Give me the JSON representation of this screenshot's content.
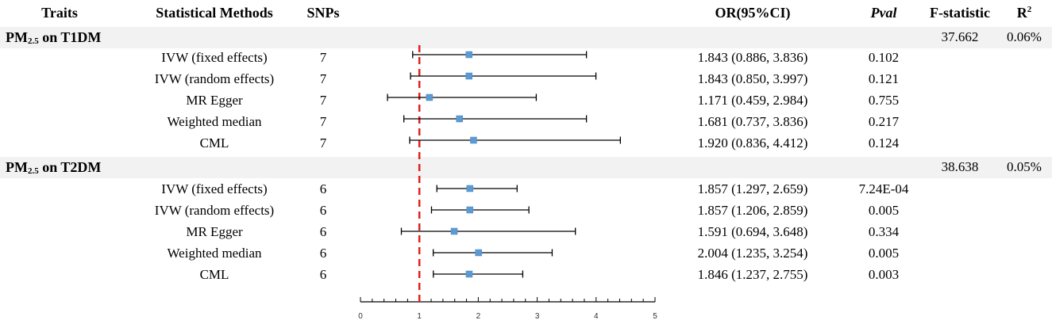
{
  "headers": {
    "traits": "Traits",
    "methods": "Statistical Methods",
    "snps": "SNPs",
    "or_ci": "OR(95%CI)",
    "pval": "Pval",
    "fstat": "F-statistic",
    "r2_base": "R",
    "r2_sup": "2"
  },
  "groups": [
    {
      "label_pre": "PM",
      "label_sub": "2.5",
      "label_post": " on T1DM",
      "fstat": "37.662",
      "r2": "0.06%",
      "rows": [
        {
          "method": "IVW (fixed effects)",
          "snps": "7",
          "or_text": "1.843 (0.886, 3.836)",
          "pval": "0.102"
        },
        {
          "method": "IVW (random effects)",
          "snps": "7",
          "or_text": "1.843 (0.850, 3.997)",
          "pval": "0.121"
        },
        {
          "method": "MR Egger",
          "snps": "7",
          "or_text": "1.171 (0.459, 2.984)",
          "pval": "0.755"
        },
        {
          "method": "Weighted median",
          "snps": "7",
          "or_text": "1.681 (0.737, 3.836)",
          "pval": "0.217"
        },
        {
          "method": "CML",
          "snps": "7",
          "or_text": "1.920 (0.836, 4.412)",
          "pval": "0.124"
        }
      ]
    },
    {
      "label_pre": "PM",
      "label_sub": "2.5",
      "label_post": " on T2DM",
      "fstat": "38.638",
      "r2": "0.05%",
      "rows": [
        {
          "method": "IVW (fixed effects)",
          "snps": "6",
          "or_text": "1.857 (1.297, 2.659)",
          "pval": "7.24E-04"
        },
        {
          "method": "IVW (random effects)",
          "snps": "6",
          "or_text": "1.857 (1.206, 2.859)",
          "pval": "0.005"
        },
        {
          "method": "MR Egger",
          "snps": "6",
          "or_text": "1.591 (0.694, 3.648)",
          "pval": "0.334"
        },
        {
          "method": "Weighted median",
          "snps": "6",
          "or_text": "2.004 (1.235, 3.254)",
          "pval": "0.005"
        },
        {
          "method": "CML",
          "snps": "6",
          "or_text": "1.846 (1.237, 2.755)",
          "pval": "0.003"
        }
      ]
    }
  ],
  "chart_data": {
    "type": "scatter",
    "title": "",
    "xlabel": "",
    "ylabel": "",
    "xlim": [
      0,
      5
    ],
    "xticks": [
      0,
      1,
      2,
      3,
      4,
      5
    ],
    "reference_line": 1,
    "reference_line_color": "#e02020",
    "marker_color": "#5b9bd5",
    "series": [
      {
        "values": [
          {
            "or": 1.843,
            "lo": 0.886,
            "hi": 3.836
          },
          {
            "or": 1.843,
            "lo": 0.85,
            "hi": 3.997
          },
          {
            "or": 1.171,
            "lo": 0.459,
            "hi": 2.984
          },
          {
            "or": 1.681,
            "lo": 0.737,
            "hi": 3.836
          },
          {
            "or": 1.92,
            "lo": 0.836,
            "hi": 4.412
          },
          {
            "or": 1.857,
            "lo": 1.297,
            "hi": 2.659
          },
          {
            "or": 1.857,
            "lo": 1.206,
            "hi": 2.859
          },
          {
            "or": 1.591,
            "lo": 0.694,
            "hi": 3.648
          },
          {
            "or": 2.004,
            "lo": 1.235,
            "hi": 3.254
          },
          {
            "or": 1.846,
            "lo": 1.237,
            "hi": 2.755
          }
        ]
      }
    ]
  }
}
